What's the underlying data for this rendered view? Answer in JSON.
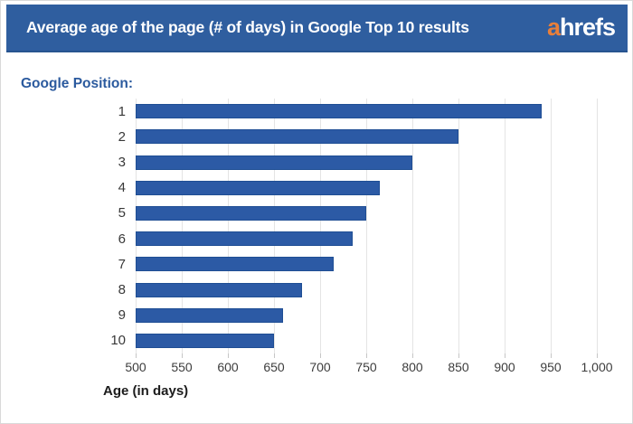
{
  "header": {
    "title": "Average age of the page (# of days) in Google Top 10 results",
    "logo": {
      "prefix": "a",
      "rest": "hrefs"
    }
  },
  "chart": {
    "group_label": "Google Position:",
    "xlabel": "Age (in days)"
  },
  "chart_data": {
    "type": "bar",
    "orientation": "horizontal",
    "title": "Average age of the page (# of days) in Google Top 10 results",
    "category_axis_label": "Google Position:",
    "categories": [
      "1",
      "2",
      "3",
      "4",
      "5",
      "6",
      "7",
      "8",
      "9",
      "10"
    ],
    "values": [
      940,
      850,
      800,
      765,
      750,
      735,
      715,
      680,
      660,
      650
    ],
    "xlabel": "Age (in days)",
    "xlim": [
      500,
      1000
    ],
    "xticks": [
      500,
      550,
      600,
      650,
      700,
      750,
      800,
      850,
      900,
      950,
      1000
    ],
    "xtick_labels": [
      "500",
      "550",
      "600",
      "650",
      "700",
      "750",
      "800",
      "850",
      "900",
      "950",
      "1,000"
    ],
    "grid": true,
    "legend": "none",
    "bar_color": "#2c5aa5",
    "bar_border_color": "#1f4e94"
  },
  "colors": {
    "header_bg": "#2f5e9f",
    "accent_orange": "#e87f3a",
    "label_blue": "#2b5a9e",
    "gridline": "#e4e4e4"
  }
}
